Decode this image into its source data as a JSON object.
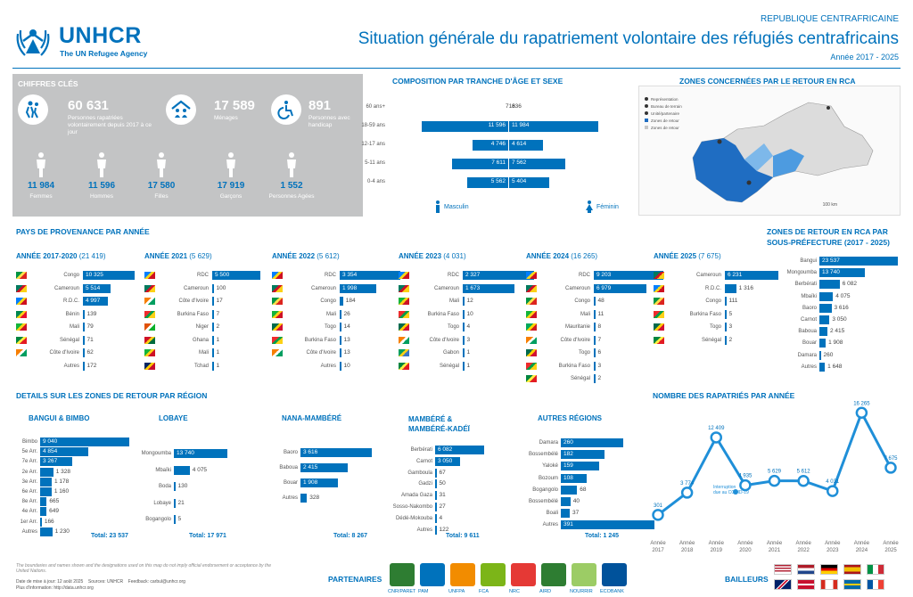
{
  "header": {
    "logo_name": "UNHCR",
    "logo_tagline": "The UN Refugee Agency",
    "country": "REPUBLIQUE CENTRAFRICAINE",
    "title": "Situation générale du rapatriement volontaire des réfugiés centrafricains",
    "period": "Année 2017 - 2025"
  },
  "key_figures": {
    "title": "CHIFFRES CLÉS",
    "total_value": "60 631",
    "total_label": "Personnes rapatriées volontairement depuis 2017 à ce jour",
    "households_value": "17 589",
    "households_label": "Ménages",
    "disabled_value": "891",
    "disabled_label": "Personnes avec handicap",
    "groups": [
      {
        "value": "11 984",
        "label": "Femmes"
      },
      {
        "value": "11 596",
        "label": "Hommes"
      },
      {
        "value": "17 580",
        "label": "Filles"
      },
      {
        "value": "17 919",
        "label": "Garçons"
      },
      {
        "value": "1 552",
        "label": "Personnes Agées"
      }
    ]
  },
  "age_sex": {
    "title": "COMPOSITION PAR TRANCHE D'ÂGE ET SEXE",
    "rows": [
      {
        "label": "60 ans+",
        "male": "716",
        "female": "836",
        "m": 716,
        "f": 836
      },
      {
        "label": "18-59 ans",
        "male": "11 596",
        "female": "11 984",
        "m": 11596,
        "f": 11984
      },
      {
        "label": "12-17 ans",
        "male": "4 746",
        "female": "4 614",
        "m": 4746,
        "f": 4614
      },
      {
        "label": "5-11 ans",
        "male": "7 611",
        "female": "7 562",
        "m": 7611,
        "f": 7562
      },
      {
        "label": "0-4 ans",
        "male": "5 562",
        "female": "5 404",
        "m": 5562,
        "f": 5404
      }
    ],
    "male_label": "Masculin",
    "female_label": "Féminin"
  },
  "map": {
    "title": "ZONES CONCERNÉES PAR LE RETOUR EN RCA",
    "legend": [
      "Représentation",
      "Bureau de terrain",
      "Unité/partenaire",
      "Zones de retour",
      "Zones de retour"
    ],
    "scale": "100 km"
  },
  "provenance": {
    "title": "PAYS DE PROVENANCE PAR ANNÉE",
    "years": [
      {
        "title": "ANNÉE 2017-2020",
        "count": "(21 419)",
        "rows": [
          {
            "country": "Congo",
            "value": "10 325",
            "n": 10325,
            "flag": [
              "#009543",
              "#fbde4a",
              "#dc241f"
            ]
          },
          {
            "country": "Cameroun",
            "value": "5 514",
            "n": 5514,
            "flag": [
              "#007a5e",
              "#ce1126",
              "#fcd116"
            ]
          },
          {
            "country": "R.D.C.",
            "value": "4 997",
            "n": 4997,
            "flag": [
              "#007fff",
              "#f7d618",
              "#ce1021"
            ]
          },
          {
            "country": "Bénin",
            "value": "139",
            "n": 139,
            "flag": [
              "#008751",
              "#fcd116",
              "#e8112d"
            ]
          },
          {
            "country": "Mali",
            "value": "79",
            "n": 79,
            "flag": [
              "#14b53a",
              "#fcd116",
              "#ce1126"
            ]
          },
          {
            "country": "Sénégal",
            "value": "71",
            "n": 71,
            "flag": [
              "#00853f",
              "#fdef42",
              "#e31b23"
            ]
          },
          {
            "country": "Côte d'Ivoire",
            "value": "62",
            "n": 62,
            "flag": [
              "#f77f00",
              "#ffffff",
              "#009e60"
            ]
          },
          {
            "country": "Autres",
            "value": "172",
            "n": 172,
            "flag": []
          }
        ]
      },
      {
        "title": "ANNÉE 2021",
        "count": "(5 629)",
        "rows": [
          {
            "country": "RDC",
            "value": "5 500",
            "n": 5500,
            "flag": [
              "#007fff",
              "#f7d618",
              "#ce1021"
            ]
          },
          {
            "country": "Cameroun",
            "value": "100",
            "n": 100,
            "flag": [
              "#007a5e",
              "#ce1126",
              "#fcd116"
            ]
          },
          {
            "country": "Côte d'Ivoire",
            "value": "17",
            "n": 17,
            "flag": [
              "#f77f00",
              "#ffffff",
              "#009e60"
            ]
          },
          {
            "country": "Burkina Faso",
            "value": "7",
            "n": 7,
            "flag": [
              "#ef2b2d",
              "#009e49",
              "#fcd116"
            ]
          },
          {
            "country": "Niger",
            "value": "2",
            "n": 2,
            "flag": [
              "#e05206",
              "#ffffff",
              "#0db02b"
            ]
          },
          {
            "country": "Ghana",
            "value": "1",
            "n": 1,
            "flag": [
              "#ce1126",
              "#fcd116",
              "#006b3f"
            ]
          },
          {
            "country": "Mali",
            "value": "1",
            "n": 1,
            "flag": [
              "#14b53a",
              "#fcd116",
              "#ce1126"
            ]
          },
          {
            "country": "Tchad",
            "value": "1",
            "n": 1,
            "flag": [
              "#002664",
              "#fecb00",
              "#c60c30"
            ]
          }
        ]
      },
      {
        "title": "ANNÉE 2022",
        "count": "(5 612)",
        "rows": [
          {
            "country": "RDC",
            "value": "3 354",
            "n": 3354,
            "flag": [
              "#007fff",
              "#f7d618",
              "#ce1021"
            ]
          },
          {
            "country": "Cameroun",
            "value": "1 998",
            "n": 1998,
            "flag": [
              "#007a5e",
              "#ce1126",
              "#fcd116"
            ]
          },
          {
            "country": "Congo",
            "value": "184",
            "n": 184,
            "flag": [
              "#009543",
              "#fbde4a",
              "#dc241f"
            ]
          },
          {
            "country": "Mali",
            "value": "26",
            "n": 26,
            "flag": [
              "#14b53a",
              "#fcd116",
              "#ce1126"
            ]
          },
          {
            "country": "Togo",
            "value": "14",
            "n": 14,
            "flag": [
              "#006a4e",
              "#ffce00",
              "#d21034"
            ]
          },
          {
            "country": "Burkina Faso",
            "value": "13",
            "n": 13,
            "flag": [
              "#ef2b2d",
              "#009e49",
              "#fcd116"
            ]
          },
          {
            "country": "Côte d'Ivoire",
            "value": "13",
            "n": 13,
            "flag": [
              "#f77f00",
              "#ffffff",
              "#009e60"
            ]
          },
          {
            "country": "Autres",
            "value": "10",
            "n": 10,
            "flag": []
          }
        ]
      },
      {
        "title": "ANNÉE 2023",
        "count": "(4 031)",
        "rows": [
          {
            "country": "RDC",
            "value": "2 327",
            "n": 2327,
            "flag": [
              "#007fff",
              "#f7d618",
              "#ce1021"
            ]
          },
          {
            "country": "Cameroun",
            "value": "1 673",
            "n": 1673,
            "flag": [
              "#007a5e",
              "#ce1126",
              "#fcd116"
            ]
          },
          {
            "country": "Mali",
            "value": "12",
            "n": 12,
            "flag": [
              "#14b53a",
              "#fcd116",
              "#ce1126"
            ]
          },
          {
            "country": "Burkina Faso",
            "value": "10",
            "n": 10,
            "flag": [
              "#ef2b2d",
              "#009e49",
              "#fcd116"
            ]
          },
          {
            "country": "Togo",
            "value": "4",
            "n": 4,
            "flag": [
              "#006a4e",
              "#ffce00",
              "#d21034"
            ]
          },
          {
            "country": "Côte d'Ivoire",
            "value": "3",
            "n": 3,
            "flag": [
              "#f77f00",
              "#ffffff",
              "#009e60"
            ]
          },
          {
            "country": "Gabon",
            "value": "1",
            "n": 1,
            "flag": [
              "#009e60",
              "#fcd116",
              "#3a75c4"
            ]
          },
          {
            "country": "Sénégal",
            "value": "1",
            "n": 1,
            "flag": [
              "#00853f",
              "#fdef42",
              "#e31b23"
            ]
          }
        ]
      },
      {
        "title": "ANNÉE 2024",
        "count": "(16 265)",
        "rows": [
          {
            "country": "RDC",
            "value": "9 203",
            "n": 9203,
            "flag": [
              "#007fff",
              "#f7d618",
              "#ce1021"
            ]
          },
          {
            "country": "Cameroun",
            "value": "6 979",
            "n": 6979,
            "flag": [
              "#007a5e",
              "#ce1126",
              "#fcd116"
            ]
          },
          {
            "country": "Congo",
            "value": "48",
            "n": 48,
            "flag": [
              "#009543",
              "#fbde4a",
              "#dc241f"
            ]
          },
          {
            "country": "Mali",
            "value": "11",
            "n": 11,
            "flag": [
              "#14b53a",
              "#fcd116",
              "#ce1126"
            ]
          },
          {
            "country": "Mauritanie",
            "value": "8",
            "n": 8,
            "flag": [
              "#00a95c",
              "#ffd700",
              "#d01c1f"
            ]
          },
          {
            "country": "Côte d'Ivoire",
            "value": "7",
            "n": 7,
            "flag": [
              "#f77f00",
              "#ffffff",
              "#009e60"
            ]
          },
          {
            "country": "Togo",
            "value": "6",
            "n": 6,
            "flag": [
              "#006a4e",
              "#ffce00",
              "#d21034"
            ]
          },
          {
            "country": "Burkina Faso",
            "value": "3",
            "n": 3,
            "flag": [
              "#ef2b2d",
              "#009e49",
              "#fcd116"
            ]
          },
          {
            "country": "Sénégal",
            "value": "2",
            "n": 2,
            "flag": [
              "#00853f",
              "#fdef42",
              "#e31b23"
            ]
          }
        ]
      },
      {
        "title": "ANNÉE 2025",
        "count": "(7 675)",
        "rows": [
          {
            "country": "Cameroun",
            "value": "6 231",
            "n": 6231,
            "flag": [
              "#007a5e",
              "#ce1126",
              "#fcd116"
            ]
          },
          {
            "country": "R.D.C.",
            "value": "1 316",
            "n": 1316,
            "flag": [
              "#007fff",
              "#f7d618",
              "#ce1021"
            ]
          },
          {
            "country": "Congo",
            "value": "111",
            "n": 111,
            "flag": [
              "#009543",
              "#fbde4a",
              "#dc241f"
            ]
          },
          {
            "country": "Burkina Faso",
            "value": "5",
            "n": 5,
            "flag": [
              "#ef2b2d",
              "#009e49",
              "#fcd116"
            ]
          },
          {
            "country": "Togo",
            "value": "3",
            "n": 3,
            "flag": [
              "#006a4e",
              "#ffce00",
              "#d21034"
            ]
          },
          {
            "country": "Sénégal",
            "value": "2",
            "n": 2,
            "flag": [
              "#00853f",
              "#fdef42",
              "#e31b23"
            ]
          }
        ]
      }
    ]
  },
  "subprefecture": {
    "title": "ZONES DE RETOUR EN RCA PAR SOUS-PRÉFECTURE (2017 - 2025)",
    "rows": [
      {
        "label": "Bangui",
        "value": "23 537",
        "n": 23537
      },
      {
        "label": "Mongoumba",
        "value": "13 740",
        "n": 13740
      },
      {
        "label": "Berbérati",
        "value": "6 082",
        "n": 6082
      },
      {
        "label": "Mbaïki",
        "value": "4 075",
        "n": 4075
      },
      {
        "label": "Baoro",
        "value": "3 616",
        "n": 3616
      },
      {
        "label": "Carnot",
        "value": "3 050",
        "n": 3050
      },
      {
        "label": "Baboua",
        "value": "2 415",
        "n": 2415
      },
      {
        "label": "Bouar",
        "value": "1 908",
        "n": 1908
      },
      {
        "label": "Damara",
        "value": "260",
        "n": 260
      },
      {
        "label": "Autres",
        "value": "1 648",
        "n": 1648
      }
    ]
  },
  "regions": {
    "title": "DETAILS SUR LES ZONES DE RETOUR PAR RÉGION",
    "blocks": [
      {
        "title": "BANGUI & BIMBO",
        "total": "Total: 23 537",
        "rows": [
          {
            "label": "Bimbo",
            "value": "9 040",
            "n": 9040
          },
          {
            "label": "5e Arr.",
            "value": "4 854",
            "n": 4854
          },
          {
            "label": "7e Arr.",
            "value": "3 267",
            "n": 3267
          },
          {
            "label": "2e Arr.",
            "value": "1 328",
            "n": 1328
          },
          {
            "label": "3e Arr.",
            "value": "1 178",
            "n": 1178
          },
          {
            "label": "6e Arr.",
            "value": "1 160",
            "n": 1160
          },
          {
            "label": "8e Arr.",
            "value": "665",
            "n": 665
          },
          {
            "label": "4e Arr.",
            "value": "649",
            "n": 649
          },
          {
            "label": "1er Arr.",
            "value": "166",
            "n": 166
          },
          {
            "label": "Autres",
            "value": "1 230",
            "n": 1230
          }
        ]
      },
      {
        "title": "LOBAYE",
        "total": "Total: 17 971",
        "rows": [
          {
            "label": "Mongoumba",
            "value": "13 740",
            "n": 13740
          },
          {
            "label": "Mbaïki",
            "value": "4 075",
            "n": 4075
          },
          {
            "label": "Boda",
            "value": "130",
            "n": 130
          },
          {
            "label": "Lobaye",
            "value": "21",
            "n": 21
          },
          {
            "label": "Bogangolo",
            "value": "5",
            "n": 5
          }
        ]
      },
      {
        "title": "NANA-MAMBÉRÉ",
        "total": "Total: 8 267",
        "rows": [
          {
            "label": "Baoro",
            "value": "3 616",
            "n": 3616
          },
          {
            "label": "Baboua",
            "value": "2 415",
            "n": 2415
          },
          {
            "label": "Bouar",
            "value": "1 908",
            "n": 1908
          },
          {
            "label": "Autres",
            "value": "328",
            "n": 328
          }
        ]
      },
      {
        "title": "MAMBÉRÉ & MAMBÉRÉ-KADÉÏ",
        "total": "Total: 9 611",
        "rows": [
          {
            "label": "Berbérati",
            "value": "6 082",
            "n": 6082
          },
          {
            "label": "Carnot",
            "value": "3 050",
            "n": 3050
          },
          {
            "label": "Gamboula",
            "value": "67",
            "n": 67
          },
          {
            "label": "Gadzi",
            "value": "50",
            "n": 50
          },
          {
            "label": "Amada Gaza",
            "value": "31",
            "n": 31
          },
          {
            "label": "Sosso-Nakombo",
            "value": "27",
            "n": 27
          },
          {
            "label": "Dédé-Mokouba",
            "value": "4",
            "n": 4
          },
          {
            "label": "Autres",
            "value": "122",
            "n": 122
          }
        ]
      },
      {
        "title": "AUTRES RÉGIONS",
        "total": "Total: 1 245",
        "rows": [
          {
            "label": "Damara",
            "value": "260",
            "n": 260
          },
          {
            "label": "Bossembélé",
            "value": "182",
            "n": 182
          },
          {
            "label": "Yaloké",
            "value": "159",
            "n": 159
          },
          {
            "label": "Bozoum",
            "value": "108",
            "n": 108
          },
          {
            "label": "Bogangolo",
            "value": "68",
            "n": 68
          },
          {
            "label": "Bossembélé",
            "value": "40",
            "n": 40
          },
          {
            "label": "Boali",
            "value": "37",
            "n": 37
          },
          {
            "label": "Autres",
            "value": "391",
            "n": 391
          }
        ]
      }
    ]
  },
  "chart_data": {
    "type": "line",
    "title": "NOMBRE DES RAPATRIÉS PAR ANNÉE",
    "categories": [
      "Année 2017",
      "Année 2018",
      "Année 2019",
      "Année 2020",
      "Année 2021",
      "Année 2022",
      "Année 2023",
      "Année 2024",
      "Année 2025"
    ],
    "values": [
      301,
      3774,
      12409,
      4935,
      5629,
      5612,
      4031,
      16265,
      7675
    ],
    "labels": [
      "301",
      "3 774",
      "12 409",
      "4 935",
      "5 629",
      "5 612",
      "4 031",
      "16 265",
      "7 675"
    ],
    "annotation": "Interruption due au COVID-19",
    "ylim": [
      0,
      17000
    ],
    "color": "#1f8fd8"
  },
  "footer": {
    "disclaimer": "The boundaries and names shown and the designations used on this map do not imply official endorsement or acceptance by the United Nations.",
    "date": "Date de mise à jour: 12 août 2025",
    "sources": "Sources: UNHCR",
    "feedback": "Feedback: carbul@unhcr.org",
    "info": "Plus d'information: http://data.unhcr.org",
    "partners_label": "PARTENAIRES",
    "partners": [
      "CNR/PARET",
      "PAM",
      "UNFPA",
      "FCA",
      "NRC",
      "AIRD",
      "NOURRIR",
      "ECOBANK"
    ],
    "donors_label": "BAILLEURS"
  }
}
